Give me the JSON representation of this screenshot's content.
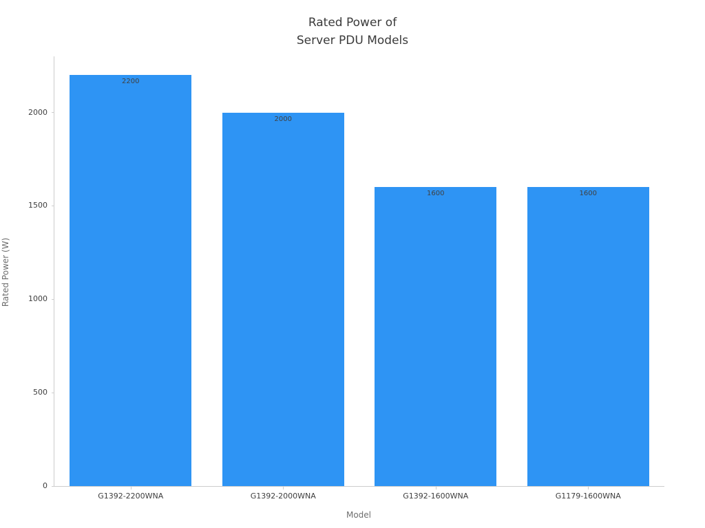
{
  "chart_data": {
    "type": "bar",
    "title": "Rated Power of\nServer PDU Models",
    "xlabel": "Model",
    "ylabel": "Rated Power (W)",
    "categories": [
      "G1392-2200WNA",
      "G1392-2000WNA",
      "G1392-1600WNA",
      "G1179-1600WNA"
    ],
    "values": [
      2200,
      2000,
      1600,
      1600
    ],
    "bar_value_labels": [
      "2200",
      "2000",
      "1600",
      "1600"
    ],
    "yticks": [
      0,
      500,
      1000,
      1500,
      2000
    ],
    "ylim": [
      0,
      2300
    ],
    "bar_color": "#2e94f4",
    "spine_color": "#cccccc",
    "tick_label_color": "#3d3d3d",
    "axis_title_color": "#6e6e6e",
    "grid": "off",
    "legend": "none"
  }
}
